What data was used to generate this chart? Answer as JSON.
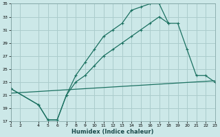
{
  "xlabel": "Humidex (Indice chaleur)",
  "bg_color": "#cce8e8",
  "grid_color": "#aacccc",
  "line_color": "#1a7060",
  "xlim": [
    1,
    23
  ],
  "ylim": [
    17,
    35
  ],
  "xticks": [
    1,
    2,
    4,
    5,
    6,
    7,
    8,
    9,
    10,
    11,
    12,
    13,
    14,
    15,
    16,
    17,
    18,
    19,
    20,
    21,
    22,
    23
  ],
  "yticks": [
    17,
    19,
    21,
    23,
    25,
    27,
    29,
    31,
    33,
    35
  ],
  "curve1_x": [
    1,
    4,
    5,
    6,
    7,
    8,
    9,
    10,
    11,
    12,
    13,
    14,
    15,
    16,
    17,
    18
  ],
  "curve1_y": [
    22,
    19.5,
    17.2,
    17.2,
    21,
    24,
    26,
    28,
    30,
    31,
    32,
    34,
    34.5,
    35,
    35,
    32
  ],
  "curve2_x": [
    1,
    4,
    5,
    6,
    7,
    8,
    9,
    10,
    11,
    12,
    13,
    14,
    15,
    16,
    17,
    18,
    19,
    20,
    21,
    22,
    23
  ],
  "curve2_y": [
    22,
    19.5,
    17.2,
    17.2,
    21,
    23,
    24,
    25.5,
    27,
    28,
    29,
    30,
    31,
    32,
    33,
    32,
    32,
    28,
    24,
    24,
    23
  ],
  "curve3_x": [
    1,
    23
  ],
  "curve3_y": [
    21.3,
    23.2
  ]
}
